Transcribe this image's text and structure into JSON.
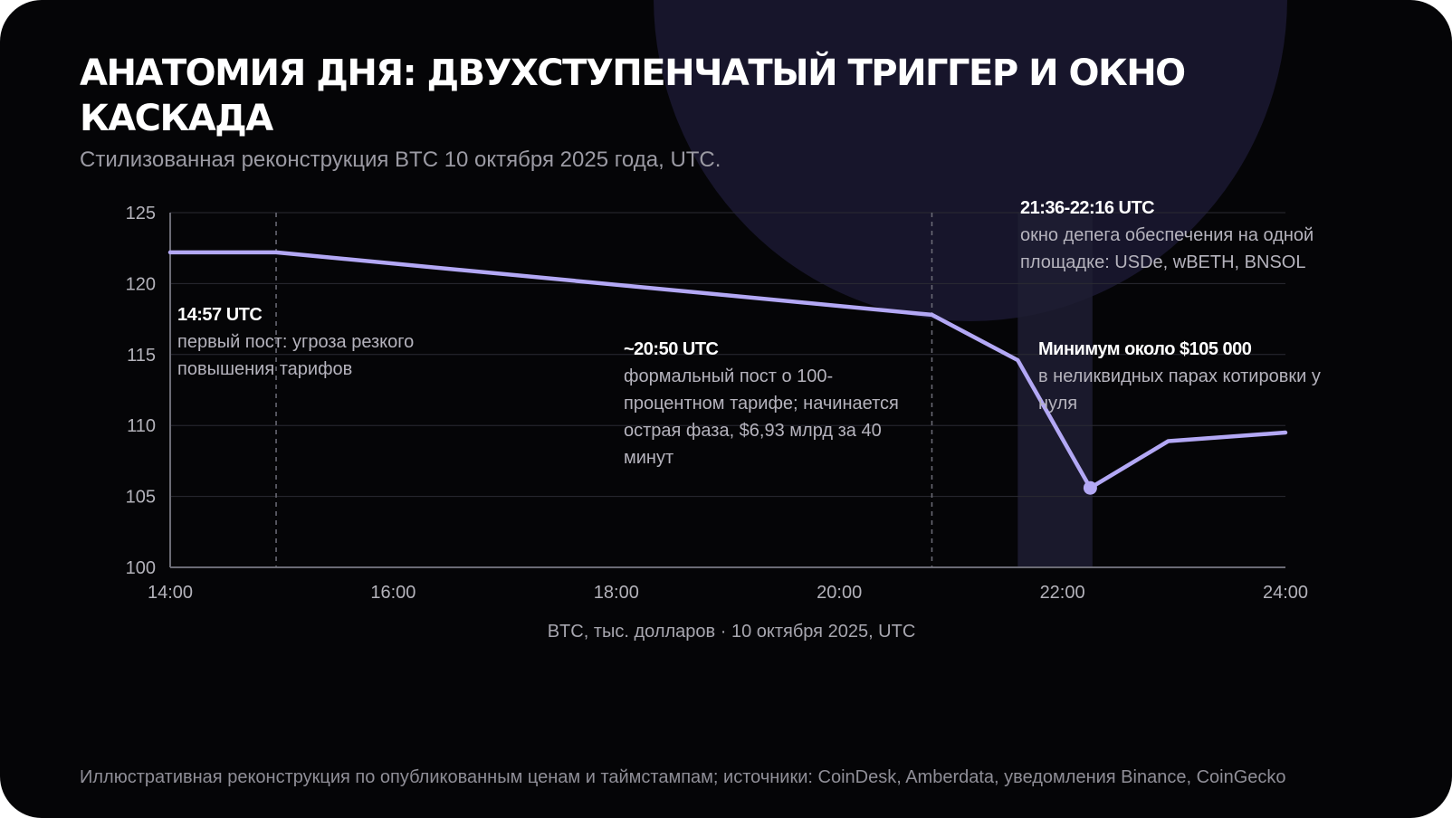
{
  "header": {
    "title": "АНАТОМИЯ ДНЯ: ДВУХСТУПЕНЧАТЫЙ ТРИГГЕР И ОКНО КАСКАДА",
    "subtitle": "Стилизованная реконструкция BTC 10 октября 2025 года, UTC."
  },
  "footer": {
    "source": "Иллюстративная реконструкция по опубликованным ценам и таймстампам; источники: CoinDesk, Amberdata, уведомления Binance, CoinGecko"
  },
  "colors": {
    "background": "#050507",
    "line": "#b3a8f5",
    "highlight_band": "#1f1d33",
    "grid": "#2b2b33"
  },
  "chart_data": {
    "type": "line",
    "xlabel": "BTC, тыс. долларов · 10 октября 2025, UTC",
    "ylabel": "",
    "xlim": [
      14,
      24
    ],
    "ylim": [
      100,
      125
    ],
    "x_ticks": [
      {
        "value": 14,
        "label": "14:00"
      },
      {
        "value": 16,
        "label": "16:00"
      },
      {
        "value": 18,
        "label": "18:00"
      },
      {
        "value": 20,
        "label": "20:00"
      },
      {
        "value": 22,
        "label": "22:00"
      },
      {
        "value": 24,
        "label": "24:00"
      }
    ],
    "y_ticks": [
      100,
      105,
      110,
      115,
      120,
      125
    ],
    "grid": true,
    "series": [
      {
        "points": [
          {
            "x": 14.0,
            "y": 122.2
          },
          {
            "x": 14.95,
            "y": 122.2
          },
          {
            "x": 20.83,
            "y": 117.8
          },
          {
            "x": 21.6,
            "y": 114.6
          },
          {
            "x": 22.25,
            "y": 105.6
          },
          {
            "x": 22.95,
            "y": 108.9
          },
          {
            "x": 24.0,
            "y": 109.5
          }
        ]
      }
    ],
    "marker": {
      "x": 22.25,
      "y": 105.6
    },
    "vlines": [
      14.95,
      20.83
    ],
    "highlight_band": {
      "from": 21.6,
      "to": 22.27
    },
    "annotations": [
      {
        "time": "14:57 UTC",
        "text": "первый пост: угроза резкого повышения тарифов"
      },
      {
        "time": "~20:50 UTC",
        "text": "формальный пост о 100-процентном тарифе; начинается острая фаза, $6,93 млрд за 40 минут"
      },
      {
        "time": "21:36-22:16 UTC",
        "text": "окно депега обеспечения на одной площадке: USDe, wBETH, BNSOL"
      },
      {
        "time": "Минимум около $105 000",
        "text": "в неликвидных парах котировки у нуля"
      }
    ]
  }
}
